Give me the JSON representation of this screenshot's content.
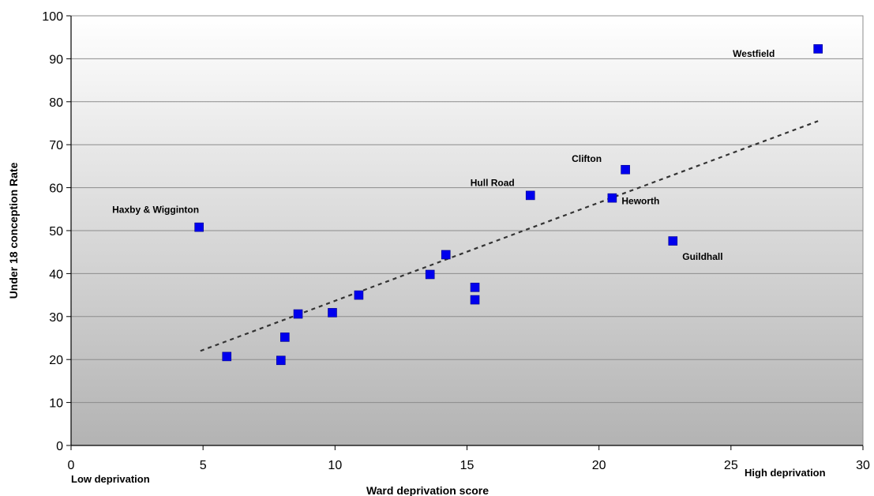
{
  "chart_data": {
    "type": "scatter",
    "title": "",
    "xlabel": "Ward deprivation score",
    "ylabel": "Under 18 conception Rate",
    "xlim": [
      0,
      30
    ],
    "ylim": [
      0,
      100
    ],
    "xticks": [
      "0",
      "5",
      "10",
      "15",
      "20",
      "25",
      "30"
    ],
    "yticks": [
      "0",
      "10",
      "20",
      "30",
      "40",
      "50",
      "60",
      "70",
      "80",
      "90",
      "100"
    ],
    "grid": "horizontal",
    "background": "vertical gradient, white at top to grey at bottom",
    "marker_color": "#0000ee",
    "trendline": {
      "style": "dotted",
      "color": "#333333",
      "x": [
        4.9,
        28.3
      ],
      "y": [
        22,
        75.5
      ]
    },
    "corner_labels": {
      "low": "Low deprivation",
      "high": "High deprivation"
    },
    "points": [
      {
        "x": 4.85,
        "y": 50.8,
        "label": "Haxby & Wigginton"
      },
      {
        "x": 5.9,
        "y": 20.7,
        "label": ""
      },
      {
        "x": 7.95,
        "y": 19.8,
        "label": ""
      },
      {
        "x": 8.1,
        "y": 25.2,
        "label": ""
      },
      {
        "x": 8.6,
        "y": 30.6,
        "label": ""
      },
      {
        "x": 9.9,
        "y": 30.9,
        "label": ""
      },
      {
        "x": 10.9,
        "y": 35.0,
        "label": ""
      },
      {
        "x": 13.6,
        "y": 39.8,
        "label": ""
      },
      {
        "x": 14.2,
        "y": 44.4,
        "label": ""
      },
      {
        "x": 15.3,
        "y": 36.8,
        "label": ""
      },
      {
        "x": 15.3,
        "y": 33.9,
        "label": ""
      },
      {
        "x": 17.4,
        "y": 58.2,
        "label": "Hull Road"
      },
      {
        "x": 20.5,
        "y": 57.6,
        "label": "Heworth"
      },
      {
        "x": 21.0,
        "y": 64.2,
        "label": "Clifton"
      },
      {
        "x": 22.8,
        "y": 47.6,
        "label": "Guildhall"
      },
      {
        "x": 28.3,
        "y": 92.3,
        "label": "Westfield"
      }
    ]
  }
}
